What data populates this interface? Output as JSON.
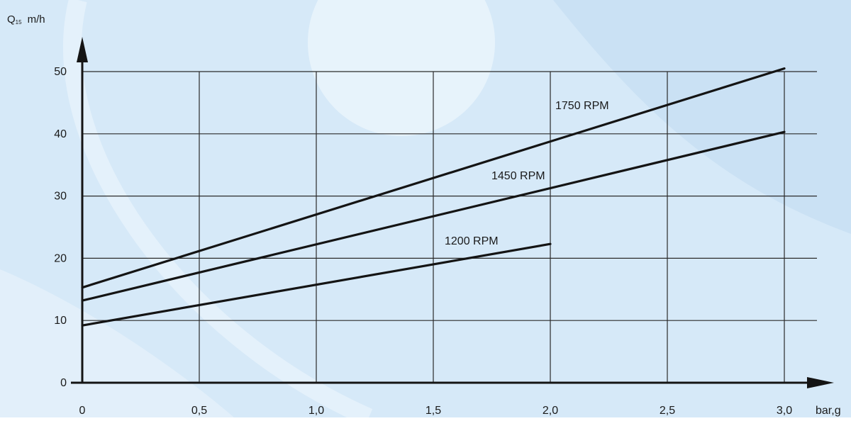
{
  "colors": {
    "background": "#d6e9f8",
    "background_light": "#eaf4fc",
    "background_mid": "#c5ddf2",
    "grid": "#2b2b2b",
    "line": "#141414",
    "text": "#1a1a1a"
  },
  "chart_data": {
    "type": "line",
    "title": "",
    "ylabel_main": "Q",
    "ylabel_sub": "15",
    "ylabel_unit": "m/h",
    "xlabel": "bar,g",
    "xlim": [
      0,
      3.0
    ],
    "ylim": [
      0,
      50
    ],
    "grid": true,
    "x_ticks": [
      0,
      0.5,
      1.0,
      1.5,
      2.0,
      2.5,
      3.0
    ],
    "x_tick_labels": [
      "0",
      "0,5",
      "1,0",
      "1,5",
      "2,0",
      "2,5",
      "3,0"
    ],
    "y_ticks": [
      0,
      10,
      20,
      30,
      40,
      50
    ],
    "y_tick_labels": [
      "0",
      "10",
      "20",
      "30",
      "40",
      "50"
    ],
    "series": [
      {
        "name": "1750 RPM",
        "points": [
          [
            0,
            15.3
          ],
          [
            3.0,
            50.5
          ]
        ]
      },
      {
        "name": "1450 RPM",
        "points": [
          [
            0,
            13.2
          ],
          [
            3.0,
            40.3
          ]
        ]
      },
      {
        "name": "1200 RPM",
        "points": [
          [
            0,
            9.2
          ],
          [
            2.0,
            22.3
          ]
        ]
      }
    ]
  }
}
